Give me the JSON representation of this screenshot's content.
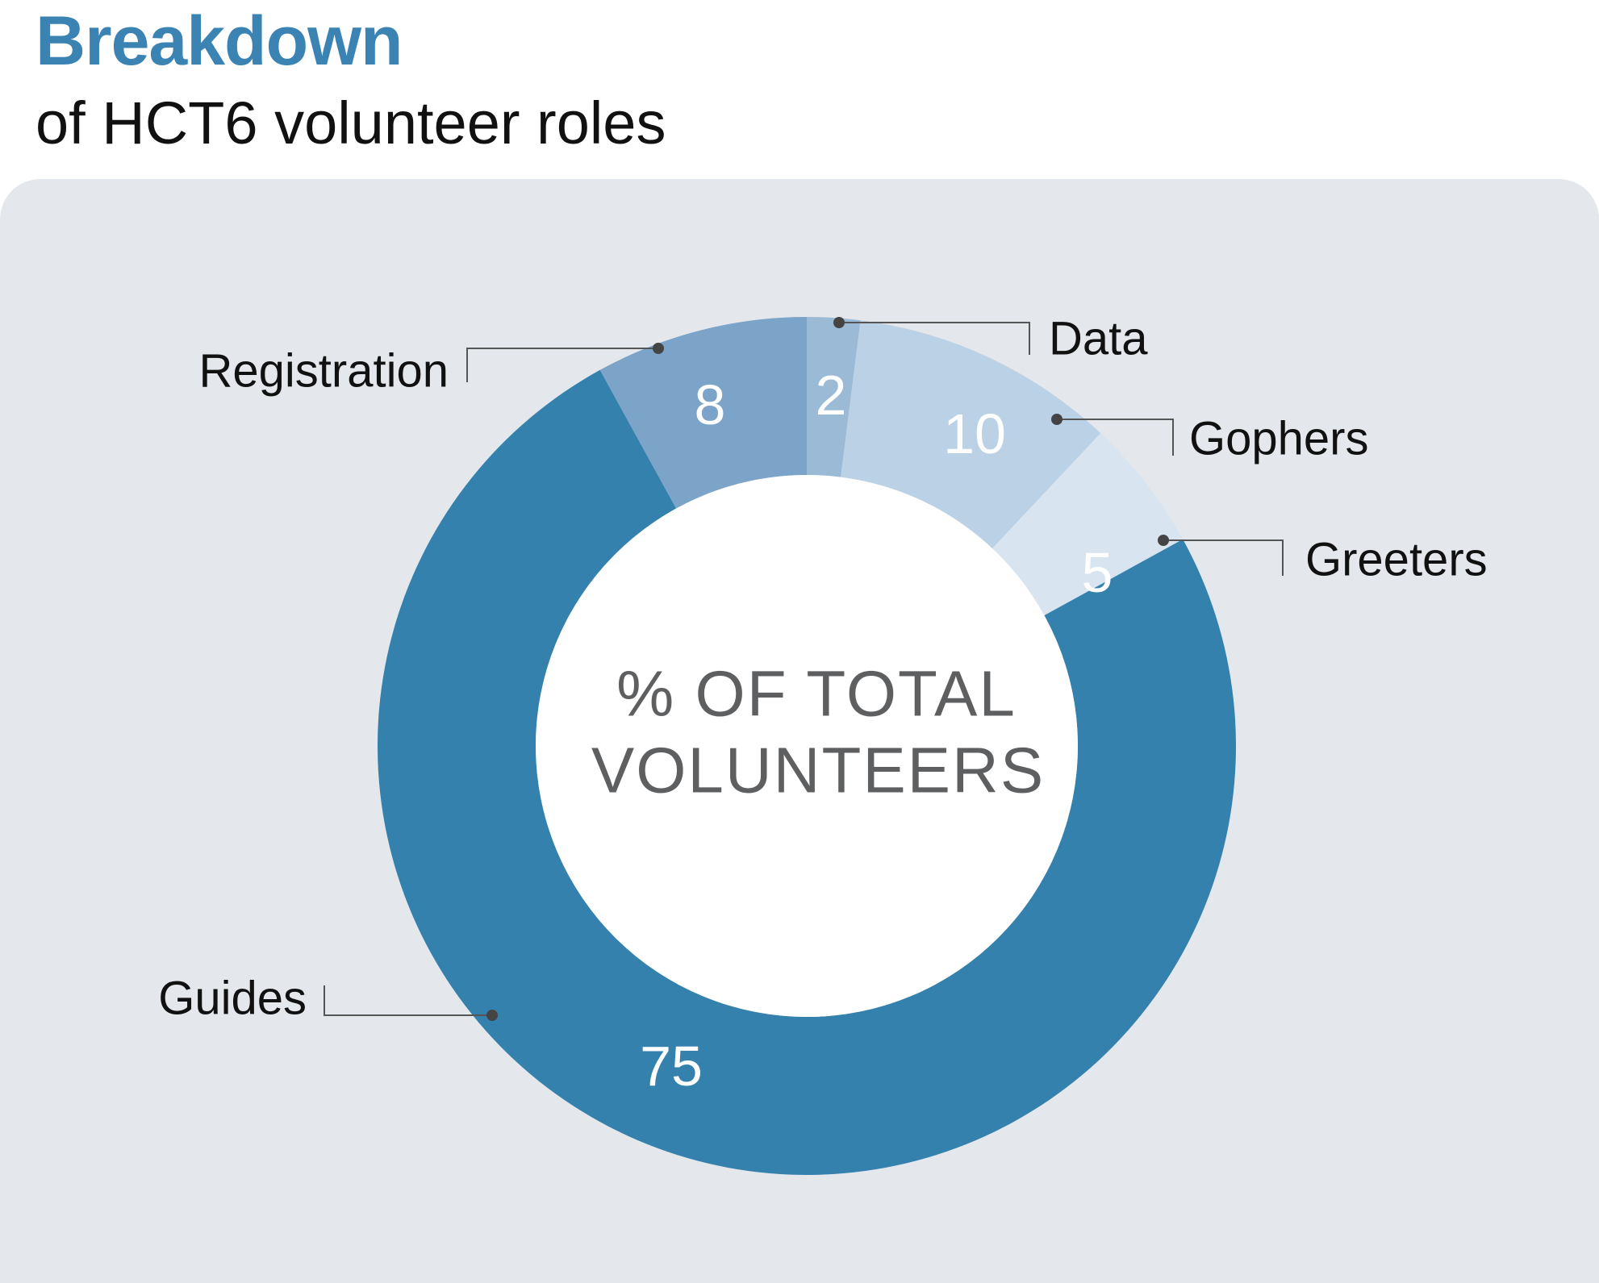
{
  "header": {
    "title": "Breakdown",
    "subtitle": "of HCT6 volunteer roles"
  },
  "chart_data": {
    "type": "pie",
    "title": "Breakdown",
    "subtitle": "of HCT6 volunteer roles",
    "center_text": [
      "% OF TOTAL",
      "VOLUNTEERS"
    ],
    "slices": [
      {
        "name": "Data",
        "value": 2,
        "color": "#9bbad6"
      },
      {
        "name": "Gophers",
        "value": 10,
        "color": "#bbd1e5"
      },
      {
        "name": "Greeters",
        "value": 5,
        "color": "#d8e4f0"
      },
      {
        "name": "Guides",
        "value": 75,
        "color": "#3581ae"
      },
      {
        "name": "Registration",
        "value": 8,
        "color": "#7ca3c8"
      }
    ],
    "colors": {
      "background": "#e4e8ec",
      "title": "#3a83b3",
      "center_text": "#5e5f61"
    }
  }
}
